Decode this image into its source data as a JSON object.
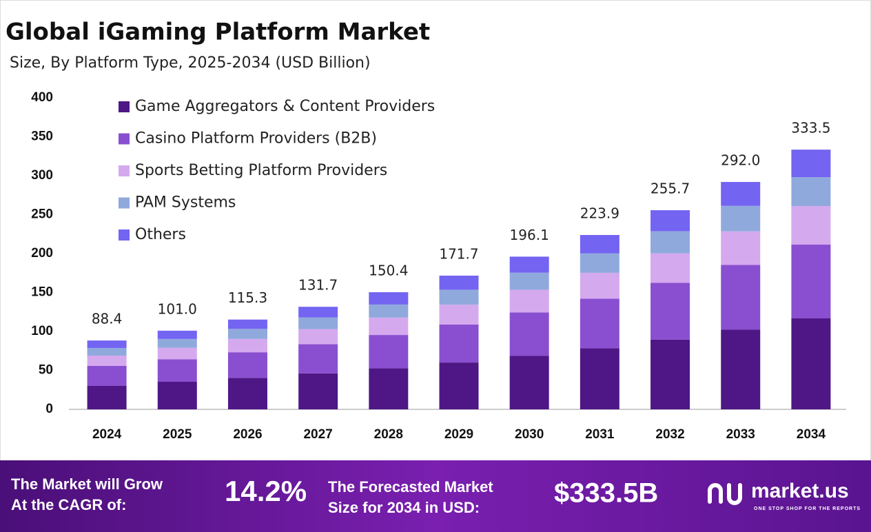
{
  "chart_data": {
    "type": "stacked-bar",
    "title": "Global iGaming Platform Market",
    "subtitle": "Size, By Platform Type, 2025-2034 (USD Billion)",
    "categories": [
      "2024",
      "2025",
      "2026",
      "2027",
      "2028",
      "2029",
      "2030",
      "2031",
      "2032",
      "2033",
      "2034"
    ],
    "series": [
      {
        "name": "Game Aggregators & Content Providers",
        "color": "#4e1785",
        "values": [
          30.1,
          35.4,
          40.4,
          46.1,
          52.6,
          60.1,
          68.6,
          78.4,
          89.5,
          102.2,
          116.8
        ]
      },
      {
        "name": "Casino Platform Providers (B2B)",
        "color": "#8a4fd0",
        "values": [
          25.7,
          28.8,
          32.9,
          37.5,
          42.9,
          48.9,
          55.9,
          63.8,
          72.9,
          83.2,
          94.7
        ]
      },
      {
        "name": "Sports Betting Platform Providers",
        "color": "#d5a9ee",
        "values": [
          13.2,
          14.9,
          17.1,
          19.5,
          22.3,
          25.4,
          29.0,
          33.1,
          37.8,
          43.2,
          49.5
        ]
      },
      {
        "name": "PAM Systems",
        "color": "#90a9dd",
        "values": [
          9.8,
          11.3,
          12.9,
          14.8,
          16.8,
          19.2,
          22.0,
          25.1,
          28.6,
          32.7,
          37.2
        ]
      },
      {
        "name": "Others",
        "color": "#7464f2",
        "values": [
          9.6,
          10.6,
          12.0,
          13.8,
          15.8,
          18.1,
          20.6,
          23.5,
          26.9,
          30.7,
          35.3
        ]
      }
    ],
    "totals": [
      88.4,
      101.0,
      115.3,
      131.7,
      150.4,
      171.7,
      196.1,
      223.9,
      255.7,
      292.0,
      333.5
    ],
    "totals_labels": [
      "88.4",
      "101.0",
      "115.3",
      "131.7",
      "150.4",
      "171.7",
      "196.1",
      "223.9",
      "255.7",
      "292.0",
      "333.5"
    ],
    "ylim": [
      0,
      400
    ],
    "yticks": [
      0,
      50,
      100,
      150,
      200,
      250,
      300,
      350,
      400
    ],
    "grid": false,
    "legend": "top-left"
  },
  "footer": {
    "cagr_label": [
      "The Market will Grow",
      "At the CAGR of:"
    ],
    "cagr": "14.2%",
    "forecast_label": [
      "The Forecasted Market",
      "Size for 2034 in USD:"
    ],
    "forecast": "$333.5B",
    "brand": "market.us",
    "tagline": "ONE STOP SHOP FOR THE REPORTS"
  }
}
